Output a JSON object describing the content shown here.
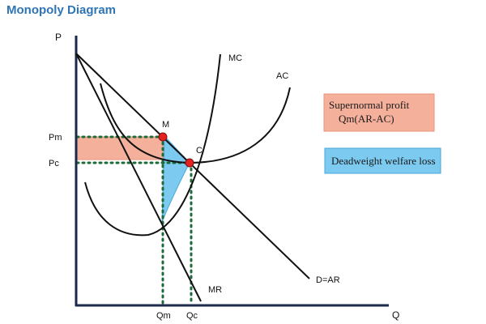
{
  "title": "Monopoly Diagram",
  "axes": {
    "y_label": "P",
    "x_label": "Q"
  },
  "curve_labels": {
    "mc": "MC",
    "ac": "AC",
    "demand": "D=AR",
    "mr": "MR"
  },
  "points": {
    "m": "M",
    "c": "C"
  },
  "price_labels": {
    "pm": "Pm",
    "pc": "Pc"
  },
  "quantity_labels": {
    "qm": "Qm",
    "qc": "Qc"
  },
  "legend": {
    "profit_line1": "Supernormal profit",
    "profit_line2": "Qm(AR-AC)",
    "deadweight": "Deadweight welfare loss"
  },
  "colors": {
    "profit_fill": "#f4b09a",
    "deadweight_fill": "#7dcaf0",
    "point_fill": "#e52222",
    "guide_dots": "#1e6b3a",
    "axis": "#1b2a4a",
    "title": "#2e75b6"
  }
}
